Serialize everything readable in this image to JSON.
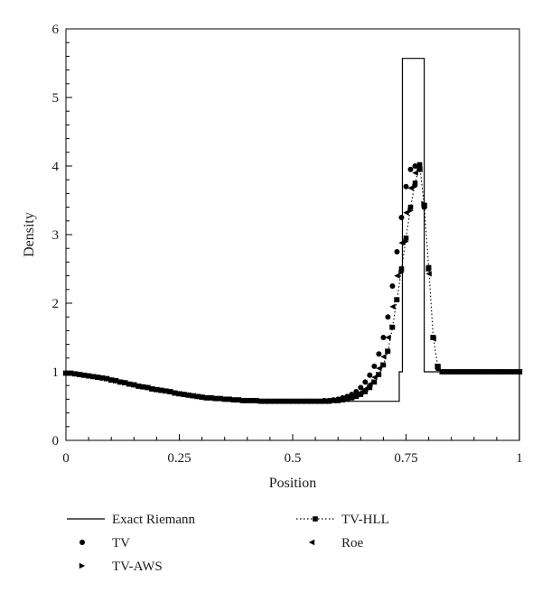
{
  "chart_data": {
    "type": "line",
    "xlabel": "Position",
    "ylabel": "Density",
    "xlim": [
      0,
      1
    ],
    "ylim": [
      0,
      6
    ],
    "x_ticks": [
      0,
      0.25,
      0.5,
      0.75,
      1
    ],
    "x_tick_labels": [
      "0",
      "0.25",
      "0.5",
      "0.75",
      "1"
    ],
    "y_ticks": [
      0,
      1,
      2,
      3,
      4,
      5,
      6
    ],
    "y_tick_labels": [
      "0",
      "1",
      "2",
      "3",
      "4",
      "5",
      "6"
    ],
    "grid": false,
    "legend_position": "bottom",
    "series": [
      {
        "name": "Exact Riemann",
        "style": "solid-line",
        "color": "#000000",
        "x": [
          0,
          0.05,
          0.1,
          0.15,
          0.2,
          0.25,
          0.3,
          0.35,
          0.4,
          0.45,
          0.5,
          0.55,
          0.6,
          0.65,
          0.7,
          0.735,
          0.735,
          0.742,
          0.742,
          0.79,
          0.79,
          1.0,
          1.0
        ],
        "y": [
          0.98,
          0.94,
          0.88,
          0.81,
          0.74,
          0.68,
          0.63,
          0.6,
          0.58,
          0.57,
          0.57,
          0.57,
          0.57,
          0.57,
          0.57,
          0.57,
          1.0,
          1.0,
          5.57,
          5.57,
          1.0,
          1.0,
          0.0
        ]
      },
      {
        "name": "TV",
        "style": "circle-markers",
        "color": "#000000",
        "x": [
          0.0,
          0.01,
          0.02,
          0.03,
          0.04,
          0.05,
          0.06,
          0.07,
          0.08,
          0.09,
          0.1,
          0.11,
          0.12,
          0.13,
          0.14,
          0.15,
          0.16,
          0.17,
          0.18,
          0.19,
          0.2,
          0.21,
          0.22,
          0.23,
          0.24,
          0.25,
          0.26,
          0.27,
          0.28,
          0.29,
          0.3,
          0.31,
          0.32,
          0.33,
          0.34,
          0.35,
          0.36,
          0.37,
          0.38,
          0.39,
          0.4,
          0.41,
          0.42,
          0.43,
          0.44,
          0.45,
          0.46,
          0.47,
          0.48,
          0.49,
          0.5,
          0.51,
          0.52,
          0.53,
          0.54,
          0.55,
          0.56,
          0.57,
          0.58,
          0.59,
          0.6,
          0.61,
          0.62,
          0.63,
          0.64,
          0.65,
          0.66,
          0.67,
          0.68,
          0.69,
          0.7,
          0.71,
          0.72,
          0.73,
          0.74,
          0.75,
          0.76,
          0.77,
          0.78,
          0.79,
          0.8,
          0.81,
          0.82,
          0.83,
          0.84,
          0.85,
          0.86,
          0.87,
          0.88,
          0.89,
          0.9,
          0.91,
          0.92,
          0.93,
          0.94,
          0.95,
          0.96,
          0.97,
          0.98,
          0.99,
          1.0
        ],
        "y": [
          0.98,
          0.98,
          0.97,
          0.96,
          0.95,
          0.94,
          0.93,
          0.92,
          0.91,
          0.9,
          0.88,
          0.87,
          0.85,
          0.84,
          0.82,
          0.81,
          0.79,
          0.78,
          0.77,
          0.75,
          0.74,
          0.73,
          0.72,
          0.71,
          0.69,
          0.68,
          0.67,
          0.66,
          0.65,
          0.64,
          0.63,
          0.62,
          0.62,
          0.61,
          0.61,
          0.6,
          0.6,
          0.59,
          0.59,
          0.58,
          0.58,
          0.58,
          0.58,
          0.57,
          0.57,
          0.57,
          0.57,
          0.57,
          0.57,
          0.57,
          0.57,
          0.57,
          0.57,
          0.57,
          0.57,
          0.57,
          0.57,
          0.58,
          0.58,
          0.59,
          0.6,
          0.62,
          0.64,
          0.67,
          0.71,
          0.77,
          0.85,
          0.95,
          1.08,
          1.26,
          1.5,
          1.8,
          2.25,
          2.75,
          3.25,
          3.7,
          3.95,
          4.0,
          3.95,
          3.4,
          2.5,
          1.5,
          1.05,
          1.0,
          1.0,
          1.0,
          1.0,
          1.0,
          1.0,
          1.0,
          1.0,
          1.0,
          1.0,
          1.0,
          1.0,
          1.0,
          1.0,
          1.0,
          1.0,
          1.0,
          1.0
        ]
      },
      {
        "name": "TV-AWS",
        "style": "right-triangle-markers",
        "color": "#000000",
        "x": [
          0.0,
          0.01,
          0.02,
          0.03,
          0.04,
          0.05,
          0.06,
          0.07,
          0.08,
          0.09,
          0.1,
          0.11,
          0.12,
          0.13,
          0.14,
          0.15,
          0.16,
          0.17,
          0.18,
          0.19,
          0.2,
          0.21,
          0.22,
          0.23,
          0.24,
          0.25,
          0.26,
          0.27,
          0.28,
          0.29,
          0.3,
          0.31,
          0.32,
          0.33,
          0.34,
          0.35,
          0.36,
          0.37,
          0.38,
          0.39,
          0.4,
          0.41,
          0.42,
          0.43,
          0.44,
          0.45,
          0.46,
          0.47,
          0.48,
          0.49,
          0.5,
          0.51,
          0.52,
          0.53,
          0.54,
          0.55,
          0.56,
          0.57,
          0.58,
          0.59,
          0.6,
          0.61,
          0.62,
          0.63,
          0.64,
          0.65,
          0.66,
          0.67,
          0.68,
          0.69,
          0.7,
          0.71,
          0.72,
          0.73,
          0.74,
          0.75,
          0.76,
          0.77,
          0.78,
          0.79,
          0.8,
          0.81,
          0.82,
          0.83,
          0.84,
          0.85,
          0.86,
          0.87,
          0.88,
          0.89,
          0.9,
          0.91,
          0.92,
          0.93,
          0.94,
          0.95,
          0.96,
          0.97,
          0.98,
          0.99,
          1.0
        ],
        "y": [
          0.98,
          0.98,
          0.97,
          0.96,
          0.95,
          0.94,
          0.93,
          0.92,
          0.91,
          0.9,
          0.88,
          0.87,
          0.85,
          0.84,
          0.82,
          0.81,
          0.79,
          0.78,
          0.77,
          0.75,
          0.74,
          0.73,
          0.72,
          0.71,
          0.69,
          0.68,
          0.67,
          0.66,
          0.65,
          0.64,
          0.63,
          0.62,
          0.62,
          0.61,
          0.61,
          0.6,
          0.6,
          0.59,
          0.59,
          0.58,
          0.58,
          0.58,
          0.58,
          0.57,
          0.57,
          0.57,
          0.57,
          0.57,
          0.57,
          0.57,
          0.57,
          0.57,
          0.57,
          0.57,
          0.57,
          0.57,
          0.57,
          0.57,
          0.57,
          0.58,
          0.58,
          0.59,
          0.6,
          0.62,
          0.64,
          0.67,
          0.71,
          0.77,
          0.85,
          0.96,
          1.1,
          1.3,
          1.65,
          2.05,
          2.45,
          2.9,
          3.35,
          3.7,
          3.95,
          3.45,
          2.5,
          1.5,
          1.08,
          1.0,
          1.0,
          1.0,
          1.0,
          1.0,
          1.0,
          1.0,
          1.0,
          1.0,
          1.0,
          1.0,
          1.0,
          1.0,
          1.0,
          1.0,
          1.0,
          1.0,
          1.0
        ]
      },
      {
        "name": "TV-HLL",
        "style": "dotted-line-square-markers",
        "color": "#000000",
        "x": [
          0.0,
          0.01,
          0.02,
          0.03,
          0.04,
          0.05,
          0.06,
          0.07,
          0.08,
          0.09,
          0.1,
          0.11,
          0.12,
          0.13,
          0.14,
          0.15,
          0.16,
          0.17,
          0.18,
          0.19,
          0.2,
          0.21,
          0.22,
          0.23,
          0.24,
          0.25,
          0.26,
          0.27,
          0.28,
          0.29,
          0.3,
          0.31,
          0.32,
          0.33,
          0.34,
          0.35,
          0.36,
          0.37,
          0.38,
          0.39,
          0.4,
          0.41,
          0.42,
          0.43,
          0.44,
          0.45,
          0.46,
          0.47,
          0.48,
          0.49,
          0.5,
          0.51,
          0.52,
          0.53,
          0.54,
          0.55,
          0.56,
          0.57,
          0.58,
          0.59,
          0.6,
          0.61,
          0.62,
          0.63,
          0.64,
          0.65,
          0.66,
          0.67,
          0.68,
          0.69,
          0.7,
          0.71,
          0.72,
          0.73,
          0.74,
          0.75,
          0.76,
          0.77,
          0.78,
          0.79,
          0.8,
          0.81,
          0.82,
          0.83,
          0.84,
          0.85,
          0.86,
          0.87,
          0.88,
          0.89,
          0.9,
          0.91,
          0.92,
          0.93,
          0.94,
          0.95,
          0.96,
          0.97,
          0.98,
          0.99,
          1.0
        ],
        "y": [
          0.98,
          0.98,
          0.97,
          0.96,
          0.95,
          0.94,
          0.93,
          0.92,
          0.91,
          0.9,
          0.88,
          0.87,
          0.85,
          0.84,
          0.82,
          0.81,
          0.79,
          0.78,
          0.77,
          0.75,
          0.74,
          0.73,
          0.72,
          0.71,
          0.69,
          0.68,
          0.67,
          0.66,
          0.65,
          0.64,
          0.63,
          0.62,
          0.62,
          0.61,
          0.61,
          0.6,
          0.6,
          0.59,
          0.59,
          0.58,
          0.58,
          0.58,
          0.58,
          0.57,
          0.57,
          0.57,
          0.57,
          0.57,
          0.57,
          0.57,
          0.57,
          0.57,
          0.57,
          0.57,
          0.57,
          0.57,
          0.57,
          0.57,
          0.57,
          0.58,
          0.58,
          0.59,
          0.6,
          0.62,
          0.64,
          0.67,
          0.71,
          0.77,
          0.85,
          0.96,
          1.1,
          1.3,
          1.65,
          2.05,
          2.5,
          2.95,
          3.4,
          3.75,
          4.02,
          3.43,
          2.52,
          1.5,
          1.08,
          1.0,
          1.0,
          1.0,
          1.0,
          1.0,
          1.0,
          1.0,
          1.0,
          1.0,
          1.0,
          1.0,
          1.0,
          1.0,
          1.0,
          1.0,
          1.0,
          1.0,
          1.0
        ]
      },
      {
        "name": "Roe",
        "style": "left-triangle-markers",
        "color": "#000000",
        "x": [
          0.0,
          0.01,
          0.02,
          0.03,
          0.04,
          0.05,
          0.06,
          0.07,
          0.08,
          0.09,
          0.1,
          0.11,
          0.12,
          0.13,
          0.14,
          0.15,
          0.16,
          0.17,
          0.18,
          0.19,
          0.2,
          0.21,
          0.22,
          0.23,
          0.24,
          0.25,
          0.26,
          0.27,
          0.28,
          0.29,
          0.3,
          0.31,
          0.32,
          0.33,
          0.34,
          0.35,
          0.36,
          0.37,
          0.38,
          0.39,
          0.4,
          0.41,
          0.42,
          0.43,
          0.44,
          0.45,
          0.46,
          0.47,
          0.48,
          0.49,
          0.5,
          0.51,
          0.52,
          0.53,
          0.54,
          0.55,
          0.56,
          0.57,
          0.58,
          0.59,
          0.6,
          0.61,
          0.62,
          0.63,
          0.64,
          0.65,
          0.66,
          0.67,
          0.68,
          0.69,
          0.7,
          0.71,
          0.72,
          0.73,
          0.74,
          0.75,
          0.76,
          0.77,
          0.78,
          0.79,
          0.8,
          0.81,
          0.82,
          0.83,
          0.84,
          0.85,
          0.86,
          0.87,
          0.88,
          0.89,
          0.9,
          0.91,
          0.92,
          0.93,
          0.94,
          0.95,
          0.96,
          0.97,
          0.98,
          0.99,
          1.0
        ],
        "y": [
          0.98,
          0.98,
          0.97,
          0.96,
          0.95,
          0.94,
          0.93,
          0.92,
          0.91,
          0.9,
          0.88,
          0.87,
          0.85,
          0.84,
          0.82,
          0.81,
          0.79,
          0.78,
          0.77,
          0.75,
          0.74,
          0.73,
          0.72,
          0.71,
          0.69,
          0.68,
          0.67,
          0.66,
          0.65,
          0.64,
          0.63,
          0.62,
          0.62,
          0.61,
          0.61,
          0.6,
          0.6,
          0.59,
          0.59,
          0.58,
          0.58,
          0.58,
          0.58,
          0.57,
          0.57,
          0.57,
          0.57,
          0.57,
          0.57,
          0.57,
          0.57,
          0.57,
          0.57,
          0.57,
          0.57,
          0.57,
          0.57,
          0.57,
          0.58,
          0.58,
          0.59,
          0.6,
          0.61,
          0.63,
          0.66,
          0.7,
          0.75,
          0.82,
          0.92,
          1.05,
          1.22,
          1.5,
          1.95,
          2.4,
          2.88,
          3.32,
          3.68,
          3.9,
          3.95,
          3.42,
          2.43,
          1.48,
          1.07,
          1.0,
          1.0,
          1.0,
          1.0,
          1.0,
          1.0,
          1.0,
          1.0,
          1.0,
          1.0,
          1.0,
          1.0,
          1.0,
          1.0,
          1.0,
          1.0,
          1.0,
          1.0
        ]
      }
    ]
  },
  "legend": [
    {
      "label": "Exact Riemann",
      "marker": "line"
    },
    {
      "label": "TV-HLL",
      "marker": "dotted-square"
    },
    {
      "label": "TV",
      "marker": "circle"
    },
    {
      "label": "Roe",
      "marker": "triangle-left"
    },
    {
      "label": "TV-AWS",
      "marker": "triangle-right"
    }
  ]
}
